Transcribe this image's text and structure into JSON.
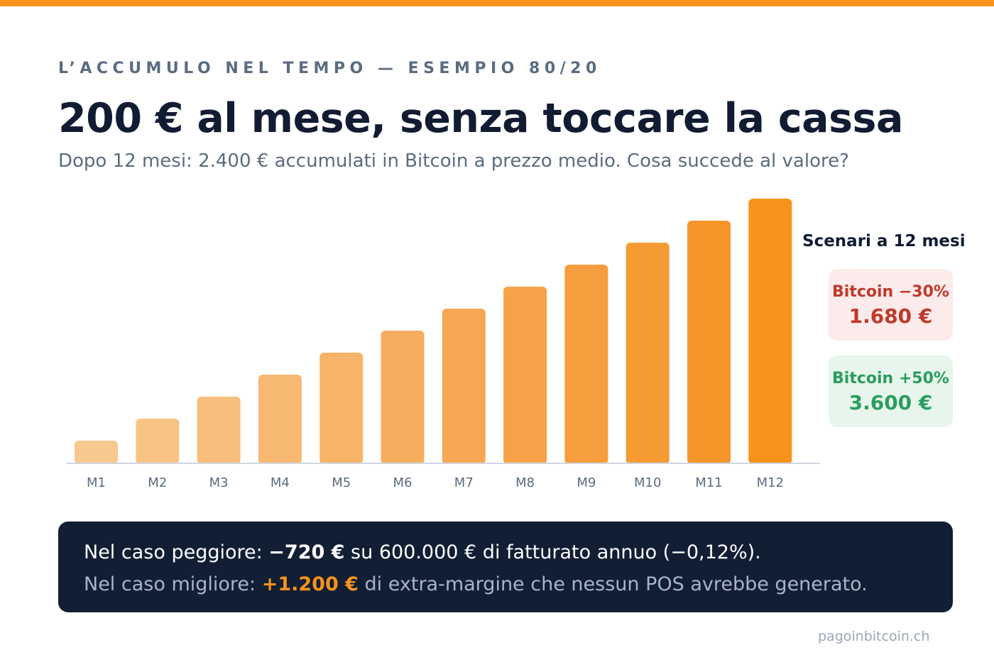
{
  "eyebrow": "L’ACCUMULO NEL TEMPO — ESEMPIO 80/20",
  "title": "200 € al mese, senza toccare la cassa",
  "subtitle": "Dopo 12 mesi: 2.400 € accumulati in Bitcoin a prezzo medio. Cosa succede al valore?",
  "chart_data": {
    "type": "bar",
    "categories": [
      "M1",
      "M2",
      "M3",
      "M4",
      "M5",
      "M6",
      "M7",
      "M8",
      "M9",
      "M10",
      "M11",
      "M12"
    ],
    "values": [
      200,
      400,
      600,
      800,
      1000,
      1200,
      1400,
      1600,
      1800,
      2000,
      2200,
      2400
    ],
    "ylim": [
      0,
      2400
    ],
    "grid": false,
    "colors": [
      "#f8c98f",
      "#f8c486",
      "#f8be7c",
      "#f7b972",
      "#f7b368",
      "#f6ad5e",
      "#f6a852",
      "#f6a347",
      "#f69d3d",
      "#f69a33",
      "#f6962a",
      "#f7931a"
    ],
    "axis_color": "#cfd6e0",
    "tick_color": "#5b6b82"
  },
  "scenarios": {
    "title": "Scenari a 12 mesi",
    "negative": {
      "label": "Bitcoin −30%",
      "value": "1.680 €"
    },
    "positive": {
      "label": "Bitcoin +50%",
      "value": "3.600 €"
    }
  },
  "banner": {
    "worst_prefix": "Nel caso peggiore: ",
    "worst_amount": "−720 €",
    "worst_suffix": " su 600.000 € di fatturato annuo (−0,12%).",
    "best_prefix": "Nel caso migliore: ",
    "best_amount": "+1.200 €",
    "best_suffix": " di extra-margine che nessun POS avrebbe generato."
  },
  "footer": "pagoinbitcoin.ch",
  "colors": {
    "accent": "#f7931a",
    "dark": "#111c33",
    "muted": "#5b6b82",
    "negative": "#c0392b",
    "positive": "#2a9d5c"
  }
}
